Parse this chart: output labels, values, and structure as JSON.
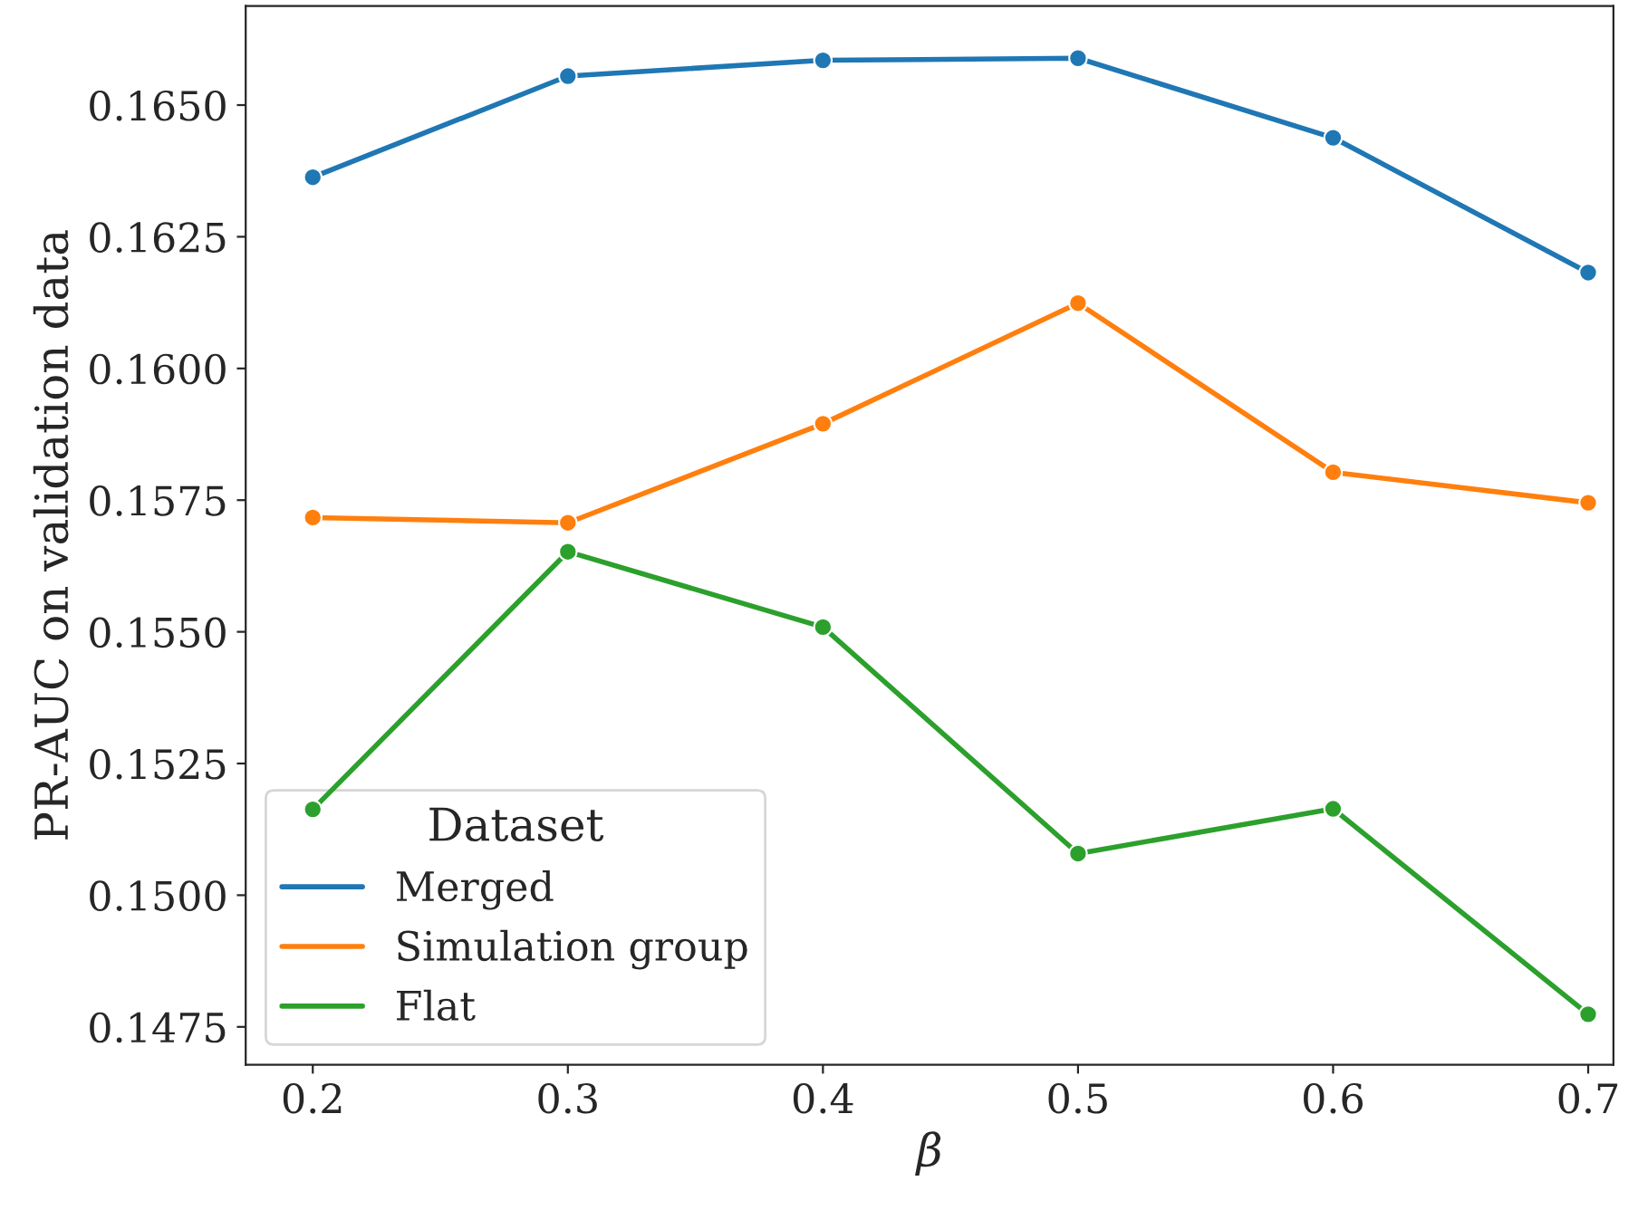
{
  "chart_data": {
    "type": "line",
    "xlabel": "β",
    "ylabel": "PR-AUC on validation data",
    "legend_title": "Dataset",
    "legend": "bottom left",
    "marker": "circle",
    "line_style": "solid",
    "grid": false,
    "x": [
      0.2,
      0.3,
      0.4,
      0.5,
      0.6,
      0.7
    ],
    "series": [
      {
        "name": "Merged",
        "color": "#1f77b4",
        "values": [
          0.16363,
          0.16555,
          0.16585,
          0.16589,
          0.16438,
          0.16182
        ]
      },
      {
        "name": "Simulation group",
        "color": "#ff7f0e",
        "values": [
          0.15717,
          0.15707,
          0.15895,
          0.16124,
          0.15803,
          0.15745
        ]
      },
      {
        "name": "Flat",
        "color": "#2ca02c",
        "values": [
          0.15163,
          0.15652,
          0.15509,
          0.15079,
          0.15164,
          0.14774
        ]
      }
    ],
    "xlim": [
      0.1737,
      0.7099
    ],
    "xticks": [
      0.2,
      0.3,
      0.4,
      0.5,
      0.6,
      0.7
    ],
    "ylim": [
      0.14678,
      0.16688
    ],
    "yticks": [
      {
        "value": 0.1475,
        "label": "0.1475"
      },
      {
        "value": 0.15,
        "label": "0.1500"
      },
      {
        "value": 0.1525,
        "label": "0.1525"
      },
      {
        "value": 0.155,
        "label": "0.1550"
      },
      {
        "value": 0.1575,
        "label": "0.1575"
      },
      {
        "value": 0.16,
        "label": "0.1600"
      },
      {
        "value": 0.1625,
        "label": "0.1625"
      },
      {
        "value": 0.165,
        "label": "0.1650"
      }
    ]
  }
}
